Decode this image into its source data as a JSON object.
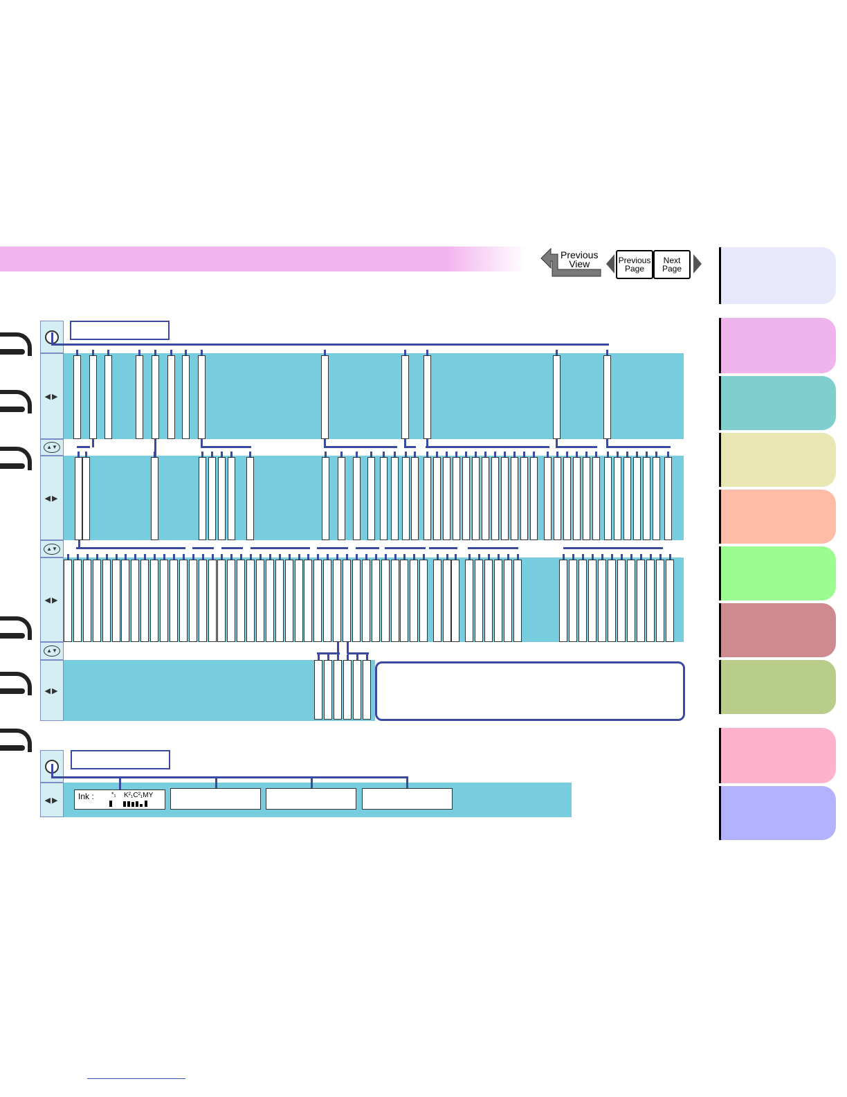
{
  "navigation": {
    "previous_view": "Previous\nView",
    "previous_page": "Previous\nPage",
    "next_page": "Next\nPage"
  },
  "colors": {
    "banner": "#f1b4ee",
    "menu_band": "#77ccdd",
    "connector": "#3a4aa0",
    "tabs": [
      "#e8e8fc",
      "#efb4ec",
      "#7ecfcd",
      "#e9e6b3",
      "#ffbda8",
      "#9bfc8f",
      "#cd8b8f",
      "#b9cd8b",
      "#ffb2cc",
      "#b3b2fd"
    ]
  },
  "ink_status": {
    "label": "Ink :",
    "k_label": "*₁",
    "color_labels": "K²₁C²₁MY"
  }
}
